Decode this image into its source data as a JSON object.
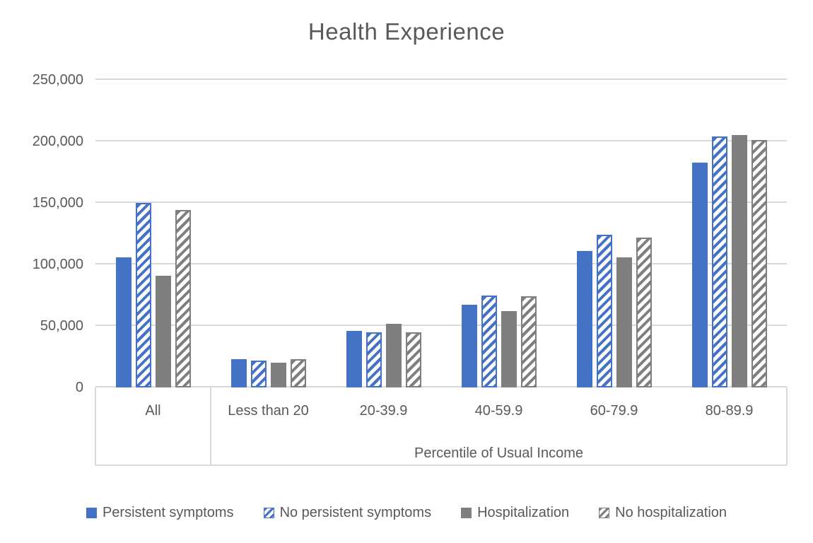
{
  "title": "Health Experience",
  "colors": {
    "series_blue": "#4472C4",
    "series_gray": "#7F7F7F",
    "gridline": "#D9D9D9",
    "text": "#595959"
  },
  "chart_data": {
    "type": "bar",
    "title": "Health Experience",
    "categories": [
      "All",
      "Less than 20",
      "20-39.9",
      "40-59.9",
      "60-79.9",
      "80-89.9"
    ],
    "series": [
      {
        "name": "Persistent symptoms",
        "style": "solid-blue",
        "values": [
          106000,
          23000,
          46000,
          67000,
          111000,
          183000
        ]
      },
      {
        "name": "No persistent symptoms",
        "style": "hatched-blue",
        "values": [
          150000,
          22000,
          45000,
          75000,
          124000,
          204000
        ]
      },
      {
        "name": "Hospitalization",
        "style": "solid-gray",
        "values": [
          91000,
          20000,
          52000,
          62000,
          106000,
          205000
        ]
      },
      {
        "name": "No hospitalization",
        "style": "hatched-gray",
        "values": [
          144000,
          23000,
          45000,
          74000,
          122000,
          201000
        ]
      }
    ],
    "xlabel": "Percentile of Usual Income",
    "ylabel": "",
    "ylim": [
      0,
      250000
    ],
    "ytick_step": 50000,
    "ytick_labels": [
      "0",
      "50,000",
      "100,000",
      "150,000",
      "200,000",
      "250,000"
    ],
    "grid": true,
    "legend_position": "bottom",
    "x_sub_axis_note": "xlabel applies to all categories except the first (All)"
  }
}
